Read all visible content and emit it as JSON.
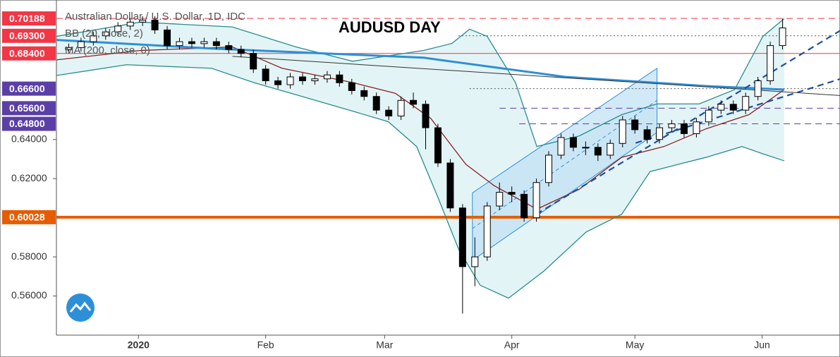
{
  "chart_data": {
    "type": "candlestick",
    "title": "AUDUSD DAY",
    "legend": [
      "Australian Dollar / U.S. Dollar, 1D, IDC",
      "BB (20, close, 2)",
      "MA (200, close, 0)"
    ],
    "xlim": [
      -20,
      171
    ],
    "ylim": [
      0.54,
      0.7113
    ],
    "xticks": [
      {
        "value": 0,
        "label": "2020"
      },
      {
        "value": 31,
        "label": "Feb"
      },
      {
        "value": 60,
        "label": "Mar"
      },
      {
        "value": 91,
        "label": "Apr"
      },
      {
        "value": 121,
        "label": "May"
      },
      {
        "value": 152,
        "label": "Jun"
      }
    ],
    "yticks": [
      {
        "value": 0.56,
        "label": "0.56000"
      },
      {
        "value": 0.58,
        "label": "0.58000"
      },
      {
        "value": 0.62,
        "label": "0.62000"
      },
      {
        "value": 0.64,
        "label": "0.64000"
      }
    ],
    "up_color": "#ffffff",
    "down_color": "#000000",
    "x": [
      -17,
      -14,
      -11,
      -8,
      -5,
      -2,
      1,
      4,
      7,
      10,
      13,
      16,
      19,
      22,
      25,
      28,
      31,
      34,
      37,
      40,
      43,
      46,
      49,
      52,
      55,
      58,
      61,
      64,
      67,
      70,
      73,
      76,
      79,
      82,
      85,
      88,
      91,
      94,
      97,
      100,
      103,
      106,
      109,
      112,
      115,
      118,
      121,
      124,
      127,
      130,
      133,
      136,
      139,
      142,
      145,
      148,
      151,
      154,
      157
    ],
    "open": [
      0.686,
      0.687,
      0.69,
      0.693,
      0.695,
      0.698,
      0.7,
      0.701,
      0.696,
      0.688,
      0.69,
      0.689,
      0.69,
      0.688,
      0.686,
      0.684,
      0.676,
      0.67,
      0.668,
      0.672,
      0.67,
      0.671,
      0.673,
      0.669,
      0.665,
      0.662,
      0.655,
      0.652,
      0.66,
      0.658,
      0.646,
      0.628,
      0.605,
      0.575,
      0.58,
      0.606,
      0.613,
      0.612,
      0.6,
      0.618,
      0.632,
      0.641,
      0.636,
      0.636,
      0.632,
      0.638,
      0.65,
      0.645,
      0.64,
      0.646,
      0.648,
      0.643,
      0.649,
      0.655,
      0.658,
      0.655,
      0.662,
      0.67,
      0.688
    ],
    "high": [
      0.689,
      0.692,
      0.695,
      0.697,
      0.7,
      0.702,
      0.703,
      0.703,
      0.698,
      0.692,
      0.692,
      0.692,
      0.692,
      0.69,
      0.688,
      0.686,
      0.678,
      0.672,
      0.674,
      0.674,
      0.673,
      0.675,
      0.675,
      0.671,
      0.667,
      0.664,
      0.657,
      0.662,
      0.664,
      0.66,
      0.648,
      0.63,
      0.607,
      0.59,
      0.608,
      0.618,
      0.616,
      0.614,
      0.62,
      0.634,
      0.643,
      0.643,
      0.639,
      0.638,
      0.64,
      0.652,
      0.652,
      0.647,
      0.648,
      0.65,
      0.65,
      0.651,
      0.657,
      0.66,
      0.66,
      0.664,
      0.672,
      0.69,
      0.7018
    ],
    "low": [
      0.684,
      0.685,
      0.688,
      0.691,
      0.693,
      0.696,
      0.698,
      0.694,
      0.686,
      0.686,
      0.687,
      0.687,
      0.686,
      0.684,
      0.682,
      0.674,
      0.668,
      0.666,
      0.666,
      0.668,
      0.668,
      0.669,
      0.667,
      0.663,
      0.66,
      0.653,
      0.65,
      0.65,
      0.656,
      0.635,
      0.626,
      0.603,
      0.551,
      0.565,
      0.578,
      0.604,
      0.608,
      0.598,
      0.598,
      0.616,
      0.63,
      0.634,
      0.632,
      0.629,
      0.63,
      0.636,
      0.643,
      0.638,
      0.638,
      0.644,
      0.641,
      0.641,
      0.647,
      0.653,
      0.653,
      0.653,
      0.66,
      0.668,
      0.686
    ],
    "close": [
      0.687,
      0.69,
      0.693,
      0.695,
      0.698,
      0.7,
      0.701,
      0.696,
      0.688,
      0.69,
      0.689,
      0.69,
      0.688,
      0.686,
      0.684,
      0.676,
      0.67,
      0.668,
      0.672,
      0.67,
      0.671,
      0.673,
      0.669,
      0.665,
      0.662,
      0.655,
      0.652,
      0.66,
      0.658,
      0.646,
      0.628,
      0.605,
      0.575,
      0.58,
      0.606,
      0.613,
      0.612,
      0.6,
      0.618,
      0.632,
      0.641,
      0.636,
      0.636,
      0.632,
      0.638,
      0.65,
      0.645,
      0.64,
      0.646,
      0.648,
      0.643,
      0.649,
      0.655,
      0.658,
      0.655,
      0.662,
      0.67,
      0.688,
      0.697
    ],
    "bb_fill_color": "#e3f4f6",
    "bb_upper": {
      "color": "#2a8c8c",
      "x": [
        -20,
        0.5,
        22.9,
        38.4,
        52.2,
        69.5,
        76.4,
        80.7,
        85,
        91.9,
        97.1,
        107.4,
        117.8,
        126.4,
        136.7,
        145.3,
        152.2,
        157.4
      ],
      "values": [
        0.6927,
        0.7,
        0.6975,
        0.6873,
        0.68,
        0.6855,
        0.6891,
        0.6964,
        0.6927,
        0.6691,
        0.6364,
        0.6418,
        0.6527,
        0.6582,
        0.6582,
        0.6655,
        0.6927,
        0.7018
      ]
    },
    "bb_lower": {
      "color": "#2a8c8c",
      "x": [
        -20,
        -2.9,
        17.8,
        28.1,
        40.2,
        52.2,
        60.9,
        67.8,
        72.9,
        78.1,
        83.3,
        90.2,
        98.8,
        109.1,
        117.8,
        124.7,
        131.6,
        138.4,
        147.1,
        152.2,
        157.4
      ],
      "values": [
        0.6727,
        0.6782,
        0.6764,
        0.6691,
        0.6618,
        0.6545,
        0.6491,
        0.6364,
        0.6109,
        0.5836,
        0.5655,
        0.5589,
        0.5727,
        0.5927,
        0.6018,
        0.6236,
        0.6273,
        0.6309,
        0.6364,
        0.6327,
        0.6291
      ]
    },
    "ma20": {
      "color": "#8b2020",
      "x": [
        -20,
        0.5,
        22.9,
        35,
        52.2,
        62.6,
        71.2,
        79.8,
        86.7,
        97.1,
        107.4,
        117.8,
        128.1,
        138.4,
        148.8,
        157.4
      ],
      "values": [
        0.6807,
        0.6855,
        0.6873,
        0.6764,
        0.6691,
        0.6636,
        0.6509,
        0.6273,
        0.6164,
        0.6044,
        0.6145,
        0.6309,
        0.6364,
        0.6455,
        0.6527,
        0.6655
      ]
    },
    "ma200": {
      "color": "#2d8fd8",
      "x": [
        -20,
        17.8,
        69.5,
        104,
        138.4,
        157.4
      ],
      "values": [
        0.6909,
        0.6865,
        0.6818,
        0.672,
        0.6673,
        0.6655
      ]
    },
    "channel": {
      "color": "#2d8fd8",
      "fill": "#bfe0f5",
      "x": [
        81.4,
        126.4,
        126.4,
        81.4
      ],
      "values": [
        0.6127,
        0.6764,
        0.6436,
        0.5782
      ],
      "mid_x": [
        81.4,
        126.4
      ],
      "mid_values": [
        0.5945,
        0.66
      ]
    },
    "trend_lines": [
      {
        "color": "#333333",
        "style": "solid",
        "x": [
          22.9,
          171
        ],
        "values": [
          0.6825,
          0.6625
        ]
      },
      {
        "color": "#1f4e9c",
        "style": "dashed",
        "x": [
          97,
          171
        ],
        "values": [
          0.6018,
          0.6956
        ]
      },
      {
        "color": "#1f4e9c",
        "style": "dashed",
        "x": [
          121.2,
          171
        ],
        "values": [
          0.6382,
          0.6709
        ]
      }
    ],
    "levels": [
      {
        "value": 0.70188,
        "label": "0.70188",
        "color": "#f23645",
        "style": "dashed"
      },
      {
        "value": 0.693,
        "label": "0.69300",
        "color": "#f23645",
        "style": "dotted",
        "x_start": 78
      },
      {
        "value": 0.684,
        "label": "0.68400",
        "color": "#f23645",
        "style": "solid"
      },
      {
        "value": 0.666,
        "label": "0.66600",
        "color": "#5b3fa6",
        "style": "dotted",
        "x_start": 80.7
      },
      {
        "value": 0.656,
        "label": "0.65600",
        "color": "#5b3fa6",
        "style": "dashed",
        "x_start": 88
      },
      {
        "value": 0.648,
        "label": "0.64800",
        "color": "#5b3fa6",
        "style": "dashed",
        "x_start": 92.8
      },
      {
        "value": 0.60028,
        "label": "0.60028",
        "color": "#e65c00",
        "style": "thick"
      }
    ]
  }
}
